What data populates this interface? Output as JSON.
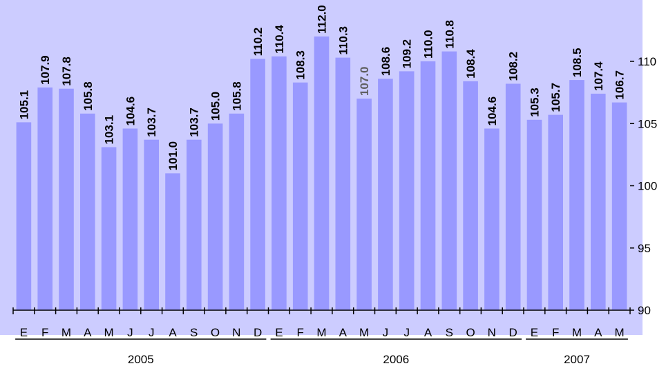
{
  "chart_data": {
    "type": "bar",
    "categories": [
      "E",
      "F",
      "M",
      "A",
      "M",
      "J",
      "J",
      "A",
      "S",
      "O",
      "N",
      "D",
      "E",
      "F",
      "M",
      "A",
      "M",
      "J",
      "J",
      "A",
      "S",
      "O",
      "N",
      "D",
      "E",
      "F",
      "M",
      "A",
      "M"
    ],
    "values": [
      105.1,
      107.9,
      107.8,
      105.8,
      103.1,
      104.6,
      103.7,
      101.0,
      103.7,
      105.0,
      105.8,
      110.2,
      110.4,
      108.3,
      112.0,
      110.3,
      107.0,
      108.6,
      109.2,
      110.0,
      110.8,
      108.4,
      104.6,
      108.2,
      105.3,
      105.7,
      108.5,
      107.4,
      106.7
    ],
    "value_labels": [
      "105.1",
      "107.9",
      "107.8",
      "105.8",
      "103.1",
      "104.6",
      "103.7",
      "101.0",
      "103.7",
      "105.0",
      "105.8",
      "110.2",
      "110.4",
      "108.3",
      "112.0",
      "110.3",
      "107.0",
      "108.6",
      "109.2",
      "110.0",
      "110.8",
      "108.4",
      "104.6",
      "108.2",
      "105.3",
      "105.7",
      "108.5",
      "107.4",
      "106.7"
    ],
    "grey_label_indices": [
      16
    ],
    "years": [
      {
        "label": "2005",
        "start": 0,
        "end": 11
      },
      {
        "label": "2006",
        "start": 12,
        "end": 23
      },
      {
        "label": "2007",
        "start": 24,
        "end": 28
      }
    ],
    "y_ticks": [
      "90",
      "95",
      "100",
      "105",
      "110"
    ],
    "ylim": [
      90,
      113
    ],
    "y_axis_side": "right",
    "title": "",
    "xlabel": "",
    "ylabel": "",
    "grid": false,
    "colors": {
      "plot_background": "#ccccff",
      "bar": "#9999ff",
      "text": "#000000",
      "grey_label": "#606060"
    }
  }
}
